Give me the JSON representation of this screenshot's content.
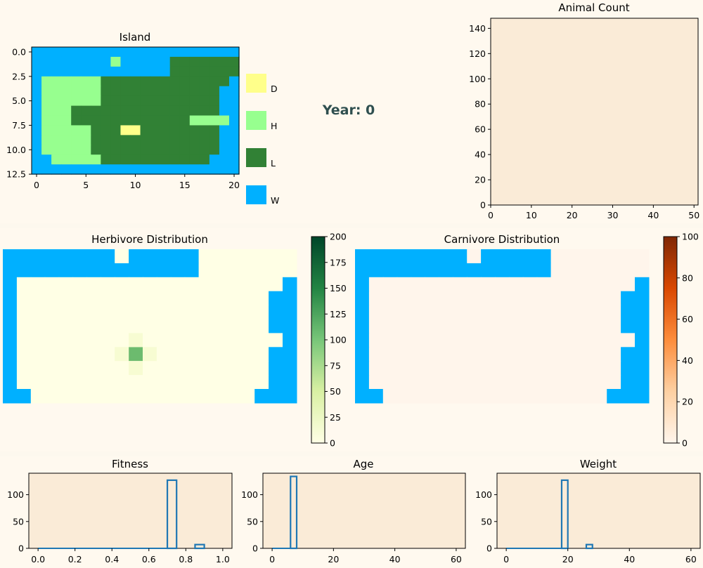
{
  "island_map": {
    "title": "Island",
    "rows": [
      "WWWWWWWWWWWWWWWWWWWWW",
      "WWWWWWWWHWWWWWLLLLLLL",
      "WWWWWWWWWWWWWWLLLLLLL",
      "WHHHHHHLLLLLLLLLLLLLW",
      "WHHHHHHLLLLLLLLLLLLWW",
      "WHHHHHHLLLLLLLLLLLLWW",
      "WHHHLLLLLLLLLLLLLLLWW",
      "WHHHLLLLLLLLLLLLHHHHW",
      "WHHHHHLLLDDLLLLLLLLWW",
      "WHHHHHLLLLLLLLLLLLLWW",
      "WHHHHHLLLLLLLLLLLLLWW",
      "WWHHHHHLLLLLLLLLLLWWW",
      "WWWWWWWWWWWWWWWWWWWWW"
    ],
    "x_ticks": [
      "0",
      "5",
      "10",
      "15",
      "20"
    ],
    "y_ticks": [
      "0.0",
      "2.5",
      "5.0",
      "7.5",
      "10.0",
      "12.5"
    ]
  },
  "legend": [
    {
      "code": "D",
      "label": "D",
      "color": "#ffff8a"
    },
    {
      "code": "H",
      "label": "H",
      "color": "#97ff8f"
    },
    {
      "code": "L",
      "label": "L",
      "color": "#318135"
    },
    {
      "code": "W",
      "label": "W",
      "color": "#00b0ff"
    }
  ],
  "year_text": "Year: 0",
  "herb_map": {
    "title": "Herbivore Distribution",
    "colorbar_ticks": [
      "0",
      "25",
      "50",
      "75",
      "100",
      "125",
      "150",
      "175",
      "200"
    ]
  },
  "carn_map": {
    "title": "Carnivore Distribution",
    "colorbar_ticks": [
      "0",
      "20",
      "40",
      "60",
      "80",
      "100"
    ]
  },
  "chart_data": [
    {
      "type": "line",
      "title": "Animal Count",
      "xlim": [
        0,
        51
      ],
      "ylim": [
        0,
        148
      ],
      "x_ticks": [
        "0",
        "10",
        "20",
        "30",
        "40",
        "50"
      ],
      "y_ticks": [
        "0",
        "20",
        "40",
        "60",
        "80",
        "100",
        "120",
        "140"
      ],
      "series": []
    },
    {
      "type": "histogram",
      "title": "Fitness",
      "bins": [
        [
          0.7,
          0.75,
          127
        ],
        [
          0.85,
          0.9,
          7
        ]
      ],
      "xlim": [
        -0.05,
        1.05
      ],
      "ylim": [
        0,
        140
      ],
      "x_ticks": [
        "0.0",
        "0.2",
        "0.4",
        "0.6",
        "0.8",
        "1.0"
      ],
      "y_ticks": [
        "0",
        "50",
        "100"
      ]
    },
    {
      "type": "histogram",
      "title": "Age",
      "bins": [
        [
          6,
          8,
          134
        ]
      ],
      "xlim": [
        -3,
        63
      ],
      "ylim": [
        0,
        140
      ],
      "x_ticks": [
        "0",
        "20",
        "40",
        "60"
      ],
      "y_ticks": [
        "0",
        "50",
        "100"
      ]
    },
    {
      "type": "histogram",
      "title": "Weight",
      "bins": [
        [
          18,
          20,
          127
        ],
        [
          26,
          28,
          7
        ]
      ],
      "xlim": [
        -3,
        63
      ],
      "ylim": [
        0,
        140
      ],
      "x_ticks": [
        "0",
        "20",
        "40",
        "60"
      ],
      "y_ticks": [
        "0",
        "50",
        "100"
      ]
    }
  ],
  "colors": {
    "axes_bg": "#faebd7",
    "page_bg": "#fff9ef",
    "bar_edge": "#1f77b4",
    "year_text": "#2f4f4f"
  }
}
